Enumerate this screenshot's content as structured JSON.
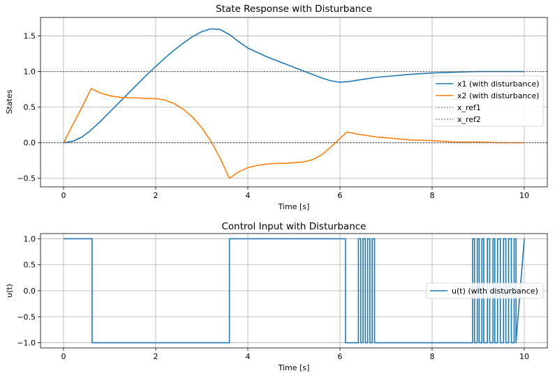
{
  "chart_data": [
    {
      "type": "line",
      "title": "State Response with Disturbance",
      "xlabel": "Time [s]",
      "ylabel": "States",
      "xlim": [
        -0.5,
        10.5
      ],
      "ylim": [
        -0.62,
        1.76
      ],
      "xticks": [
        0,
        2,
        4,
        6,
        8,
        10
      ],
      "yticks": [
        -0.5,
        0.0,
        0.5,
        1.0,
        1.5
      ],
      "grid": true,
      "legend_position": "center-right",
      "series": [
        {
          "name": "x1 (with disturbance)",
          "color": "#1f77b4",
          "style": "solid",
          "x": [
            0,
            0.2,
            0.4,
            0.6,
            0.8,
            1.0,
            1.2,
            1.4,
            1.6,
            1.8,
            2.0,
            2.2,
            2.4,
            2.6,
            2.8,
            3.0,
            3.2,
            3.4,
            3.6,
            3.8,
            4.0,
            4.2,
            4.4,
            4.6,
            4.8,
            5.0,
            5.2,
            5.4,
            5.6,
            5.8,
            6.0,
            6.2,
            6.4,
            6.6,
            6.8,
            7.0,
            7.5,
            8.0,
            8.5,
            9.0,
            9.5,
            10.0
          ],
          "y": [
            0.0,
            0.02,
            0.08,
            0.18,
            0.3,
            0.43,
            0.56,
            0.69,
            0.82,
            0.95,
            1.07,
            1.19,
            1.3,
            1.4,
            1.49,
            1.56,
            1.6,
            1.59,
            1.52,
            1.42,
            1.33,
            1.27,
            1.21,
            1.16,
            1.11,
            1.06,
            1.01,
            0.96,
            0.91,
            0.87,
            0.85,
            0.86,
            0.88,
            0.9,
            0.92,
            0.93,
            0.96,
            0.98,
            0.99,
            1.0,
            1.0,
            1.0
          ]
        },
        {
          "name": "x2 (with disturbance)",
          "color": "#ff7f0e",
          "style": "solid",
          "x": [
            0,
            0.2,
            0.4,
            0.6,
            0.8,
            1.0,
            1.2,
            1.4,
            1.6,
            1.8,
            2.0,
            2.2,
            2.4,
            2.6,
            2.8,
            3.0,
            3.2,
            3.4,
            3.6,
            3.8,
            4.0,
            4.2,
            4.4,
            4.6,
            4.8,
            5.0,
            5.2,
            5.4,
            5.6,
            5.8,
            6.0,
            6.15,
            6.4,
            6.6,
            6.8,
            7.0,
            7.5,
            8.0,
            8.5,
            9.0,
            9.5,
            10.0
          ],
          "y": [
            0.0,
            0.25,
            0.5,
            0.76,
            0.7,
            0.66,
            0.64,
            0.63,
            0.63,
            0.62,
            0.62,
            0.6,
            0.55,
            0.47,
            0.36,
            0.21,
            0.02,
            -0.22,
            -0.5,
            -0.41,
            -0.35,
            -0.32,
            -0.3,
            -0.29,
            -0.29,
            -0.28,
            -0.27,
            -0.24,
            -0.17,
            -0.06,
            0.06,
            0.15,
            0.12,
            0.1,
            0.08,
            0.07,
            0.04,
            0.03,
            0.01,
            0.01,
            0.0,
            0.0
          ]
        },
        {
          "name": "x_ref1",
          "color": "#555555",
          "style": "dotted",
          "x": [
            -0.5,
            10.5
          ],
          "y": [
            1.0,
            1.0
          ]
        },
        {
          "name": "x_ref2",
          "color": "#555555",
          "style": "dotted",
          "x": [
            -0.5,
            10.5
          ],
          "y": [
            0.0,
            0.0
          ]
        }
      ]
    },
    {
      "type": "line",
      "title": "Control Input with Disturbance",
      "xlabel": "Time [s]",
      "ylabel": "u(t)",
      "xlim": [
        -0.5,
        10.5
      ],
      "ylim": [
        -1.1,
        1.1
      ],
      "xticks": [
        0,
        2,
        4,
        6,
        8,
        10
      ],
      "yticks": [
        -1.0,
        -0.5,
        0.0,
        0.5,
        1.0
      ],
      "grid": true,
      "legend_position": "center-right",
      "series": [
        {
          "name": "u(t) (with disturbance)",
          "color": "#1f77b4",
          "style": "step",
          "x": [
            0,
            0.62,
            0.62,
            3.6,
            3.6,
            6.12,
            6.12,
            6.4,
            6.4,
            6.45,
            6.45,
            6.5,
            6.5,
            6.55,
            6.55,
            6.6,
            6.6,
            6.65,
            6.65,
            6.7,
            6.7,
            6.75,
            6.75,
            8.88,
            8.88,
            8.92,
            8.92,
            8.98,
            8.98,
            9.02,
            9.02,
            9.08,
            9.08,
            9.12,
            9.12,
            9.2,
            9.2,
            9.25,
            9.25,
            9.32,
            9.32,
            9.36,
            9.36,
            9.42,
            9.42,
            9.48,
            9.48,
            9.55,
            9.55,
            9.6,
            9.6,
            9.66,
            9.66,
            9.72,
            9.72,
            9.78,
            9.78,
            9.82,
            9.82,
            10.0
          ],
          "y": [
            1,
            1,
            -1,
            -1,
            1,
            1,
            -1,
            -1,
            1,
            1,
            -1,
            -1,
            1,
            1,
            -1,
            -1,
            1,
            1,
            -1,
            -1,
            1,
            1,
            -1,
            -1,
            1,
            1,
            -1,
            -1,
            1,
            1,
            -1,
            -1,
            1,
            1,
            -1,
            -1,
            1,
            1,
            -1,
            -1,
            1,
            1,
            -1,
            -1,
            1,
            1,
            -1,
            -1,
            1,
            1,
            -1,
            -1,
            1,
            1,
            -1,
            -1,
            1,
            1,
            -1,
            1
          ]
        }
      ]
    }
  ]
}
